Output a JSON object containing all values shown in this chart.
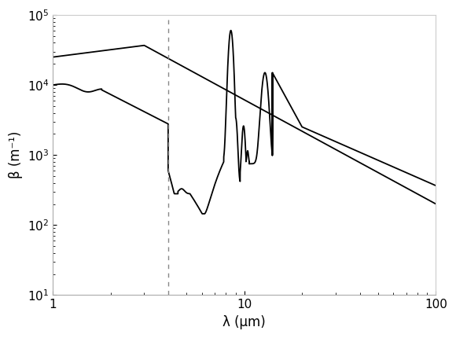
{
  "title": "",
  "xlabel": "λ (μm)",
  "ylabel": "β (m⁻¹)",
  "xlim": [
    1,
    100
  ],
  "ylim": [
    10,
    100000.0
  ],
  "vline_x": 4.0,
  "background_color": "#ffffff",
  "solid_color": "#000000",
  "dashed_color": "#000000",
  "vline_color": "#888888"
}
